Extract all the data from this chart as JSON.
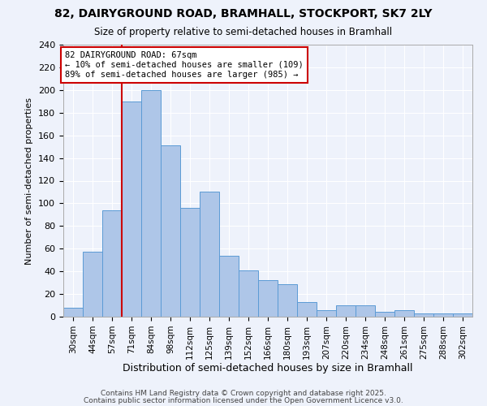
{
  "title1": "82, DAIRYGROUND ROAD, BRAMHALL, STOCKPORT, SK7 2LY",
  "title2": "Size of property relative to semi-detached houses in Bramhall",
  "xlabel": "Distribution of semi-detached houses by size in Bramhall",
  "ylabel": "Number of semi-detached properties",
  "categories": [
    "30sqm",
    "44sqm",
    "57sqm",
    "71sqm",
    "84sqm",
    "98sqm",
    "112sqm",
    "125sqm",
    "139sqm",
    "152sqm",
    "166sqm",
    "180sqm",
    "193sqm",
    "207sqm",
    "220sqm",
    "234sqm",
    "248sqm",
    "261sqm",
    "275sqm",
    "288sqm",
    "302sqm"
  ],
  "values": [
    8,
    57,
    94,
    190,
    200,
    151,
    96,
    110,
    54,
    41,
    32,
    29,
    13,
    6,
    10,
    10,
    4,
    6,
    3,
    3,
    3
  ],
  "bar_color": "#aec6e8",
  "bar_edge_color": "#5b9bd5",
  "annotation_text": "82 DAIRYGROUND ROAD: 67sqm\n← 10% of semi-detached houses are smaller (109)\n89% of semi-detached houses are larger (985) →",
  "ylim": [
    0,
    240
  ],
  "yticks": [
    0,
    20,
    40,
    60,
    80,
    100,
    120,
    140,
    160,
    180,
    200,
    220,
    240
  ],
  "footer1": "Contains HM Land Registry data © Crown copyright and database right 2025.",
  "footer2": "Contains public sector information licensed under the Open Government Licence v3.0.",
  "background_color": "#eef2fb",
  "grid_color": "#ffffff",
  "red_line_color": "#cc0000"
}
